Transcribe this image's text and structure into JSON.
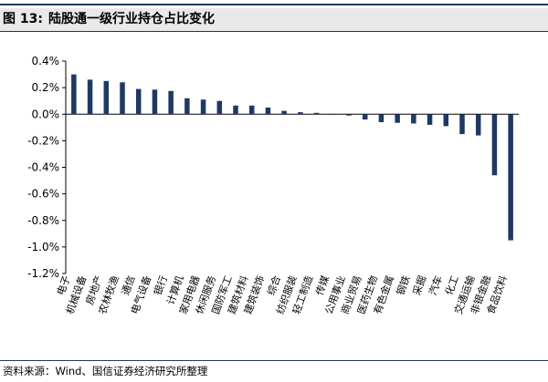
{
  "title": {
    "figure_label": "图 13:",
    "text": "陆股通一级行业持仓占比变化"
  },
  "source": "资料来源：Wind、国信证券经济研究所整理",
  "colors": {
    "bar": "#1f3864",
    "rule": "#1f3864",
    "title_bg": "#e9e9e9"
  },
  "chart_data": {
    "type": "bar",
    "title": "陆股通一级行业持仓占比变化",
    "xlabel": "",
    "ylabel": "",
    "ylim": [
      -1.2,
      0.4
    ],
    "y_ticks": [
      "0.4%",
      "0.2%",
      "0.0%",
      "-0.2%",
      "-0.4%",
      "-0.6%",
      "-0.8%",
      "-1.0%",
      "-1.2%"
    ],
    "y_tick_values": [
      0.4,
      0.2,
      0.0,
      -0.2,
      -0.4,
      -0.6,
      -0.8,
      -1.0,
      -1.2
    ],
    "unit": "%",
    "grid": false,
    "legend": "none",
    "categories": [
      "电子",
      "机械设备",
      "房地产",
      "农林牧渔",
      "通信",
      "电气设备",
      "银行",
      "计算机",
      "家用电器",
      "休闲服务",
      "国防军工",
      "建筑材料",
      "建筑装饰",
      "综合",
      "纺织服装",
      "轻工制造",
      "传媒",
      "公用事业",
      "商业贸易",
      "医药生物",
      "有色金属",
      "钢铁",
      "采掘",
      "汽车",
      "化工",
      "交通运输",
      "非银金融",
      "食品饮料"
    ],
    "values": [
      0.3,
      0.26,
      0.25,
      0.24,
      0.19,
      0.185,
      0.175,
      0.12,
      0.11,
      0.1,
      0.065,
      0.065,
      0.05,
      0.025,
      0.015,
      0.01,
      0.0,
      -0.01,
      -0.04,
      -0.06,
      -0.065,
      -0.07,
      -0.08,
      -0.09,
      -0.15,
      -0.16,
      -0.46,
      -0.95
    ]
  }
}
